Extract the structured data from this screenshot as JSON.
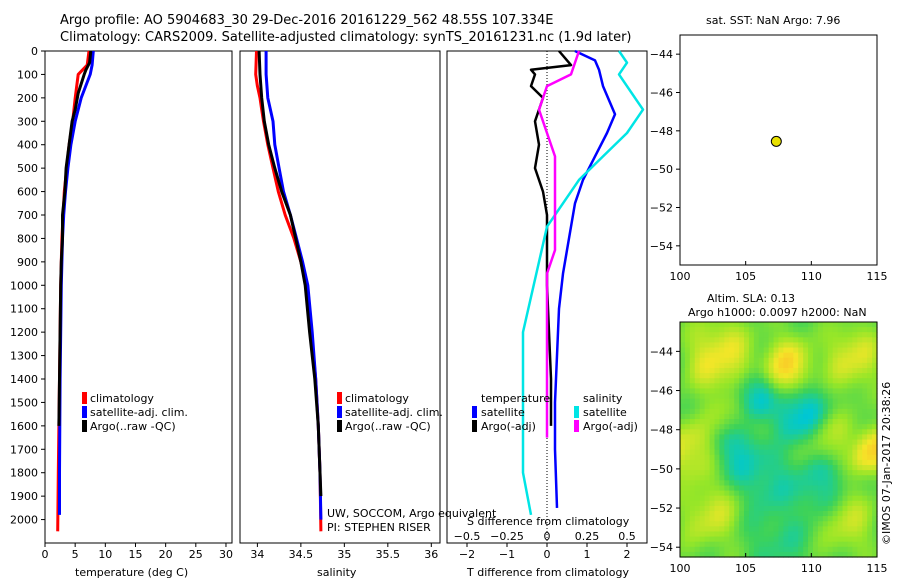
{
  "header": {
    "line1": "Argo profile: AO 5904683_30 29-Dec-2016 20161229_562 48.55S 107.334E",
    "line2": "Climatology: CARS2009. Satellite-adjusted climatology: synTS_20161231.nc (1.9d later)"
  },
  "side_label": "©IMOS 07-Jan-2017 20:38:26",
  "colors": {
    "climatology": "#ff0000",
    "satellite": "#0000ff",
    "argo": "#000000",
    "sal_satellite": "#00e5e5",
    "sal_argo": "#ff00ff",
    "marker": "#e8e000"
  },
  "chart_data": [
    {
      "type": "line",
      "panel": "temperature",
      "xlabel": "temperature (deg C)",
      "ylabel": "",
      "xlim": [
        0,
        31
      ],
      "ylim": [
        2100,
        0
      ],
      "xticks": [
        0,
        5,
        10,
        15,
        20,
        25,
        30
      ],
      "yticks": [
        0,
        100,
        200,
        300,
        400,
        500,
        600,
        700,
        800,
        900,
        1000,
        1100,
        1200,
        1300,
        1400,
        1500,
        1600,
        1700,
        1800,
        1900,
        2000
      ],
      "legend": [
        "climatology",
        "satellite-adj. clim.",
        "Argo(..raw -QC)"
      ],
      "series": [
        {
          "name": "climatology",
          "color": "#ff0000",
          "points": [
            [
              7.3,
              0
            ],
            [
              7.0,
              60
            ],
            [
              5.5,
              100
            ],
            [
              5.0,
              200
            ],
            [
              4.6,
              300
            ],
            [
              4.0,
              400
            ],
            [
              3.6,
              500
            ],
            [
              3.2,
              600
            ],
            [
              3.0,
              700
            ],
            [
              2.8,
              800
            ],
            [
              2.7,
              900
            ],
            [
              2.6,
              1000
            ],
            [
              2.5,
              1200
            ],
            [
              2.4,
              1400
            ],
            [
              2.3,
              1600
            ],
            [
              2.2,
              1800
            ],
            [
              2.1,
              2050
            ]
          ]
        },
        {
          "name": "satellite-adj. clim.",
          "color": "#0000ff",
          "points": [
            [
              8.0,
              0
            ],
            [
              7.8,
              60
            ],
            [
              7.5,
              100
            ],
            [
              6.0,
              200
            ],
            [
              5.0,
              300
            ],
            [
              4.3,
              400
            ],
            [
              3.8,
              500
            ],
            [
              3.4,
              600
            ],
            [
              3.1,
              700
            ],
            [
              2.9,
              800
            ],
            [
              2.8,
              900
            ],
            [
              2.7,
              1000
            ],
            [
              2.6,
              1200
            ],
            [
              2.5,
              1400
            ],
            [
              2.45,
              1600
            ],
            [
              2.4,
              1800
            ],
            [
              2.4,
              1980
            ]
          ]
        },
        {
          "name": "Argo(..raw -QC)",
          "color": "#000000",
          "points": [
            [
              7.6,
              0
            ],
            [
              7.4,
              50
            ],
            [
              6.8,
              80
            ],
            [
              6.5,
              100
            ],
            [
              5.5,
              180
            ],
            [
              5.0,
              250
            ],
            [
              4.5,
              300
            ],
            [
              4.0,
              400
            ],
            [
              3.5,
              500
            ],
            [
              3.3,
              600
            ],
            [
              2.9,
              700
            ],
            [
              2.9,
              800
            ],
            [
              2.7,
              900
            ],
            [
              2.6,
              1000
            ],
            [
              2.5,
              1200
            ],
            [
              2.4,
              1400
            ],
            [
              2.3,
              1600
            ]
          ]
        }
      ]
    },
    {
      "type": "line",
      "panel": "salinity",
      "xlabel": "salinity",
      "ylabel": "",
      "xlim": [
        33.8,
        36.1
      ],
      "ylim": [
        2100,
        0
      ],
      "xticks": [
        34,
        34.5,
        35,
        35.5,
        36
      ],
      "legend": [
        "climatology",
        "satellite-adj. clim.",
        "Argo(..raw -QC)"
      ],
      "annotations": [
        "UW, SOCCOM, Argo equivalent",
        "PI: STEPHEN RISER"
      ],
      "series": [
        {
          "name": "climatology",
          "color": "#ff0000",
          "points": [
            [
              33.99,
              0
            ],
            [
              33.98,
              100
            ],
            [
              34.0,
              150
            ],
            [
              34.03,
              200
            ],
            [
              34.05,
              250
            ],
            [
              34.07,
              300
            ],
            [
              34.12,
              400
            ],
            [
              34.18,
              500
            ],
            [
              34.24,
              600
            ],
            [
              34.32,
              700
            ],
            [
              34.42,
              800
            ],
            [
              34.5,
              900
            ],
            [
              34.56,
              1000
            ],
            [
              34.62,
              1200
            ],
            [
              34.67,
              1400
            ],
            [
              34.7,
              1600
            ],
            [
              34.72,
              1800
            ],
            [
              34.73,
              2050
            ]
          ]
        },
        {
          "name": "satellite-adj. clim.",
          "color": "#0000ff",
          "points": [
            [
              34.1,
              0
            ],
            [
              34.1,
              100
            ],
            [
              34.12,
              200
            ],
            [
              34.15,
              250
            ],
            [
              34.18,
              300
            ],
            [
              34.2,
              400
            ],
            [
              34.25,
              500
            ],
            [
              34.3,
              600
            ],
            [
              34.38,
              700
            ],
            [
              34.45,
              800
            ],
            [
              34.52,
              900
            ],
            [
              34.58,
              1000
            ],
            [
              34.63,
              1200
            ],
            [
              34.67,
              1400
            ],
            [
              34.7,
              1600
            ],
            [
              34.72,
              1800
            ],
            [
              34.73,
              2000
            ]
          ]
        },
        {
          "name": "Argo(..raw -QC)",
          "color": "#000000",
          "points": [
            [
              34.02,
              0
            ],
            [
              34.03,
              100
            ],
            [
              34.05,
              200
            ],
            [
              34.08,
              300
            ],
            [
              34.13,
              400
            ],
            [
              34.2,
              500
            ],
            [
              34.28,
              600
            ],
            [
              34.38,
              700
            ],
            [
              34.44,
              800
            ],
            [
              34.5,
              900
            ],
            [
              34.55,
              1000
            ],
            [
              34.6,
              1200
            ],
            [
              34.66,
              1400
            ],
            [
              34.7,
              1600
            ],
            [
              34.72,
              1800
            ],
            [
              34.73,
              1900
            ]
          ]
        }
      ]
    },
    {
      "type": "line",
      "panel": "difference",
      "xlabel": "T difference from climatology",
      "top_xlabel": "S difference from climatology",
      "xlim": [
        -2.5,
        2.5
      ],
      "top_xlim": [
        -0.625,
        0.625
      ],
      "ylim": [
        2100,
        0
      ],
      "xticks": [
        -2,
        -1,
        0,
        1,
        2
      ],
      "top_xticks": [
        -0.5,
        -0.25,
        0,
        0.25,
        0.5
      ],
      "legend_groups": [
        {
          "title": "temperature",
          "items": [
            "satellite",
            "Argo(-adj)"
          ]
        },
        {
          "title": "salinity",
          "items": [
            "satellite",
            "Argo(-adj)"
          ]
        }
      ],
      "series": [
        {
          "name": "satellite",
          "group": "temperature",
          "color": "#0000ff",
          "points": [
            [
              0.7,
              0
            ],
            [
              1.2,
              40
            ],
            [
              1.3,
              80
            ],
            [
              1.4,
              150
            ],
            [
              1.6,
              230
            ],
            [
              1.7,
              270
            ],
            [
              1.5,
              350
            ],
            [
              1.2,
              450
            ],
            [
              0.9,
              550
            ],
            [
              0.7,
              650
            ],
            [
              0.6,
              750
            ],
            [
              0.5,
              850
            ],
            [
              0.4,
              950
            ],
            [
              0.3,
              1100
            ],
            [
              0.25,
              1300
            ],
            [
              0.2,
              1500
            ],
            [
              0.2,
              1700
            ],
            [
              0.25,
              1950
            ]
          ]
        },
        {
          "name": "Argo(-adj)",
          "group": "temperature",
          "color": "#000000",
          "points": [
            [
              0.3,
              0
            ],
            [
              0.6,
              60
            ],
            [
              -0.4,
              80
            ],
            [
              -0.3,
              100
            ],
            [
              -0.4,
              150
            ],
            [
              -0.1,
              200
            ],
            [
              -0.3,
              300
            ],
            [
              -0.2,
              400
            ],
            [
              -0.3,
              500
            ],
            [
              -0.1,
              600
            ],
            [
              0.0,
              700
            ],
            [
              0.0,
              800
            ],
            [
              0.0,
              900
            ],
            [
              0.0,
              1000
            ],
            [
              0.05,
              1200
            ],
            [
              0.1,
              1400
            ],
            [
              0.1,
              1600
            ]
          ]
        },
        {
          "name": "satellite",
          "group": "salinity",
          "color": "#00e5e5",
          "points": [
            [
              0.45,
              0
            ],
            [
              0.5,
              50
            ],
            [
              0.45,
              100
            ],
            [
              0.55,
              200
            ],
            [
              0.6,
              250
            ],
            [
              0.5,
              350
            ],
            [
              0.35,
              450
            ],
            [
              0.2,
              550
            ],
            [
              0.1,
              650
            ],
            [
              0.0,
              750
            ],
            [
              -0.05,
              900
            ],
            [
              -0.1,
              1050
            ],
            [
              -0.15,
              1200
            ],
            [
              -0.15,
              1400
            ],
            [
              -0.15,
              1600
            ],
            [
              -0.15,
              1800
            ],
            [
              -0.1,
              1980
            ]
          ]
        },
        {
          "name": "Argo(-adj)",
          "group": "salinity",
          "color": "#ff00ff",
          "points": [
            [
              0.2,
              0
            ],
            [
              0.15,
              100
            ],
            [
              0.0,
              150
            ],
            [
              -0.05,
              250
            ],
            [
              0.0,
              350
            ],
            [
              0.05,
              450
            ],
            [
              0.05,
              550
            ],
            [
              0.05,
              650
            ],
            [
              0.05,
              750
            ],
            [
              0.05,
              850
            ],
            [
              0.0,
              950
            ],
            [
              0.0,
              1100
            ],
            [
              0.0,
              1300
            ],
            [
              0.0,
              1500
            ],
            [
              0.0,
              1650
            ]
          ]
        }
      ]
    },
    {
      "type": "scatter",
      "panel": "location",
      "title": "sat. SST: NaN Argo: 7.96",
      "xlim": [
        100,
        115
      ],
      "ylim": [
        -55,
        -43
      ],
      "xticks": [
        100,
        105,
        110,
        115
      ],
      "yticks": [
        -44,
        -46,
        -48,
        -50,
        -52,
        -54
      ],
      "points": [
        [
          107.334,
          -48.55
        ]
      ]
    },
    {
      "type": "heatmap",
      "panel": "altimetry",
      "title": "Altim. SLA: 0.13",
      "subtitle": "Argo h1000: 0.0097 h2000: NaN",
      "xlim": [
        100,
        115
      ],
      "ylim": [
        -54.5,
        -42.5
      ],
      "xticks": [
        100,
        105,
        110,
        115
      ],
      "yticks": [
        -44,
        -46,
        -48,
        -50,
        -52,
        -54
      ]
    }
  ]
}
